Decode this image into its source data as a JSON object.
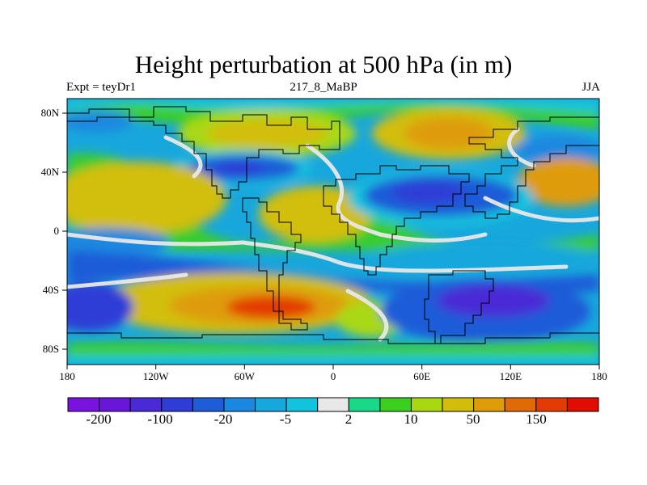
{
  "map": {
    "title": "Height perturbation at 500 hPa (in m)",
    "subtitle_left": "Expt = teyDr1",
    "subtitle_center": "217_8_MaBP",
    "subtitle_right": "JJA",
    "lon_ticks": [
      "180",
      "120W",
      "60W",
      "0",
      "60E",
      "120E",
      "180"
    ],
    "lat_ticks": [
      "80N",
      "40N",
      "0",
      "40S",
      "80S"
    ],
    "colorbar": {
      "colors": [
        "#7a12e0",
        "#6a16d8",
        "#4a2ad6",
        "#2f3dd6",
        "#1e5cd8",
        "#1a88e0",
        "#18a7dc",
        "#12c3dd",
        "#e8e8e8",
        "#19d88a",
        "#3dcf1f",
        "#a9d812",
        "#d2be0a",
        "#de9c08",
        "#df6a06",
        "#e33b05",
        "#e00d00"
      ],
      "labels": [
        "-200",
        "-100",
        "-20",
        "-5",
        "2",
        "10",
        "50",
        "150"
      ]
    }
  }
}
